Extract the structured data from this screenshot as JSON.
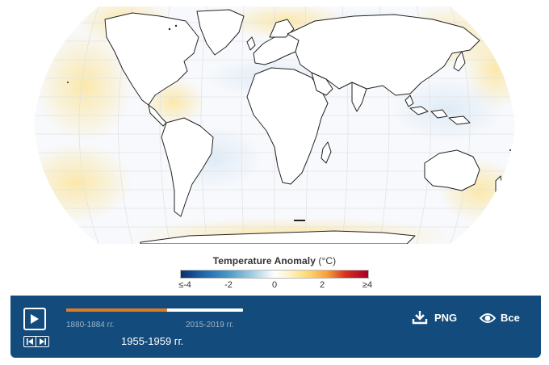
{
  "map": {
    "description_icon": "globe-map",
    "land_stroke": "#222222",
    "graticule_color": "#e3e3e3"
  },
  "legend": {
    "title": "Temperature Anomaly",
    "unit": "(°C)",
    "ticks": [
      "≤-4",
      "-2",
      "0",
      "2",
      "≥4"
    ],
    "colors": {
      "cold_extreme": "#08306b",
      "neutral": "#ffffff",
      "warm_extreme": "#a50026"
    }
  },
  "controls": {
    "background": "#124b7c",
    "play_icon": "play-icon",
    "step_back_icon": "step-back-icon",
    "step_forward_icon": "step-forward-icon",
    "timeline": {
      "start_label": "1880-1884 гг.",
      "end_label": "2015-2019 гг.",
      "current_label": "1955-1959 гг.",
      "progress_fraction": 0.57,
      "progress_color": "#e07b22"
    },
    "png_button": {
      "label": "PNG",
      "icon": "download-icon"
    },
    "all_button": {
      "label": "Все",
      "icon": "eye-icon"
    }
  }
}
